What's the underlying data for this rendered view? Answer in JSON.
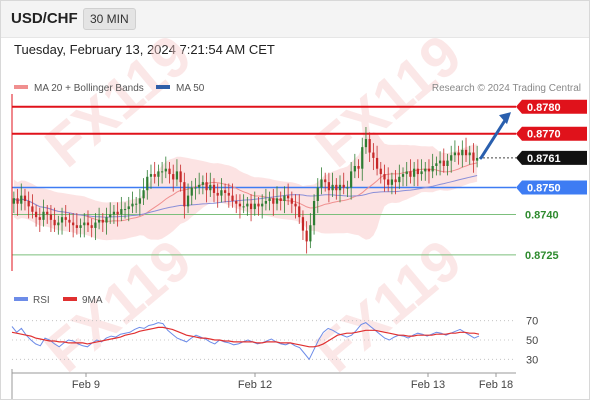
{
  "header": {
    "symbol": "USD/CHF",
    "timeframe": "30 MIN"
  },
  "datetime": "Tuesday, February 13, 2024 7:21:54 AM CET",
  "watermark": "FX119",
  "colors": {
    "resistance": "#e0121b",
    "support_blue": "#3e7cf3",
    "support_green": "#2e8b2e",
    "current": "#111111",
    "bull": "#2e7d32",
    "bear": "#c62828",
    "ma20": "#f08f8f",
    "ma50": "#8a8fd8",
    "band_fill": "#fbdada",
    "rsi": "#6d8ce8",
    "rsi_ma": "#e03030",
    "arrow": "#2a5fae"
  },
  "chart_data": [
    {
      "type": "candlestick",
      "legend": [
        {
          "label": "MA 20 + Bollinger Bands",
          "color": "#f08f8f"
        },
        {
          "label": "MA 50",
          "color": "#2f5ea8"
        }
      ],
      "source": "Research © 2024 Trading Central",
      "ylim": [
        0.8719,
        0.8784
      ],
      "x_ticks": [
        "Feb 9",
        "Feb 12",
        "Feb 13",
        "Feb 18"
      ],
      "levels": [
        {
          "value": 0.878,
          "label": "0.8780",
          "kind": "resistance"
        },
        {
          "value": 0.877,
          "label": "0.8770",
          "kind": "resistance"
        },
        {
          "value": 0.8761,
          "label": "0.8761",
          "kind": "current"
        },
        {
          "value": 0.875,
          "label": "0.8750",
          "kind": "pivot"
        },
        {
          "value": 0.874,
          "label": "0.8740",
          "kind": "support"
        },
        {
          "value": 0.8725,
          "label": "0.8725",
          "kind": "support"
        }
      ],
      "close_series": [
        0.8746,
        0.8744,
        0.8747,
        0.8745,
        0.8743,
        0.8741,
        0.8739,
        0.8738,
        0.8741,
        0.874,
        0.8738,
        0.8736,
        0.8737,
        0.8739,
        0.8738,
        0.8737,
        0.8736,
        0.8735,
        0.8736,
        0.8737,
        0.8736,
        0.8735,
        0.8737,
        0.8738,
        0.8737,
        0.8739,
        0.874,
        0.8741,
        0.874,
        0.8742,
        0.8742,
        0.8743,
        0.8744,
        0.8744,
        0.8746,
        0.8749,
        0.8754,
        0.8755,
        0.8754,
        0.8756,
        0.8756,
        0.8757,
        0.8755,
        0.8753,
        0.8756,
        0.8752,
        0.8743,
        0.8747,
        0.875,
        0.875,
        0.8751,
        0.8752,
        0.8749,
        0.8751,
        0.8748,
        0.8747,
        0.8749,
        0.8748,
        0.8747,
        0.8745,
        0.8744,
        0.8743,
        0.8743,
        0.8744,
        0.8742,
        0.8744,
        0.8743,
        0.8744,
        0.8745,
        0.8746,
        0.8744,
        0.8746,
        0.8745,
        0.8747,
        0.8746,
        0.8744,
        0.8743,
        0.8739,
        0.8734,
        0.873,
        0.8736,
        0.8745,
        0.875,
        0.8753,
        0.8752,
        0.8749,
        0.8751,
        0.8749,
        0.8751,
        0.875,
        0.875,
        0.8756,
        0.8758,
        0.8757,
        0.8765,
        0.8768,
        0.8763,
        0.8761,
        0.8757,
        0.8755,
        0.8753,
        0.8751,
        0.8753,
        0.8752,
        0.8754,
        0.8755,
        0.8756,
        0.8754,
        0.8757,
        0.8755,
        0.8756,
        0.8757,
        0.8756,
        0.8758,
        0.8759,
        0.876,
        0.8758,
        0.876,
        0.8762,
        0.8763,
        0.8762,
        0.8764,
        0.8762,
        0.8763,
        0.876,
        0.8761
      ],
      "ma20_series_start": [
        0.8738,
        0.874,
        0.8742,
        0.8741,
        0.874
      ],
      "arrow": {
        "from": 0.8761,
        "to": 0.8778
      }
    },
    {
      "type": "line",
      "legend": [
        {
          "label": "RSI",
          "color": "#6d8ce8"
        },
        {
          "label": "9MA",
          "color": "#e03030"
        }
      ],
      "ylim": [
        20,
        80
      ],
      "y_ticks": [
        70,
        50,
        30
      ],
      "rsi_values": [
        64,
        58,
        62,
        55,
        50,
        46,
        44,
        52,
        50,
        46,
        43,
        47,
        50,
        49,
        46,
        44,
        43,
        47,
        50,
        48,
        52,
        54,
        53,
        56,
        57,
        58,
        61,
        63,
        62,
        65,
        66,
        68,
        67,
        60,
        56,
        52,
        50,
        48,
        52,
        55,
        53,
        51,
        48,
        46,
        50,
        48,
        47,
        45,
        46,
        48,
        50,
        48,
        46,
        47,
        49,
        51,
        48,
        46,
        45,
        47,
        44,
        42,
        36,
        30,
        40,
        50,
        58,
        62,
        60,
        57,
        55,
        53,
        55,
        60,
        66,
        68,
        64,
        60,
        56,
        52,
        50,
        53,
        55,
        54,
        52,
        55,
        57,
        56,
        54,
        56,
        58,
        57,
        55,
        57,
        59,
        61,
        58,
        55,
        52,
        54
      ],
      "ma_values": [
        58,
        57,
        56,
        55,
        54,
        52,
        51,
        50,
        49,
        49,
        48,
        48,
        47,
        47,
        47,
        47,
        46,
        47,
        48,
        49,
        50,
        51,
        52,
        53,
        55,
        56,
        57,
        59,
        60,
        61,
        62,
        63,
        63,
        62,
        61,
        59,
        57,
        55,
        54,
        53,
        52,
        52,
        51,
        50,
        50,
        49,
        49,
        48,
        48,
        48,
        48,
        48,
        47,
        47,
        48,
        48,
        48,
        47,
        47,
        47,
        46,
        45,
        44,
        43,
        43,
        44,
        46,
        49,
        52,
        55,
        56,
        57,
        57,
        58,
        59,
        60,
        60,
        60,
        59,
        58,
        57,
        56,
        55,
        55,
        54,
        54,
        55,
        55,
        55,
        55,
        56,
        56,
        56,
        57,
        57,
        58,
        58,
        57,
        57,
        56
      ]
    }
  ]
}
